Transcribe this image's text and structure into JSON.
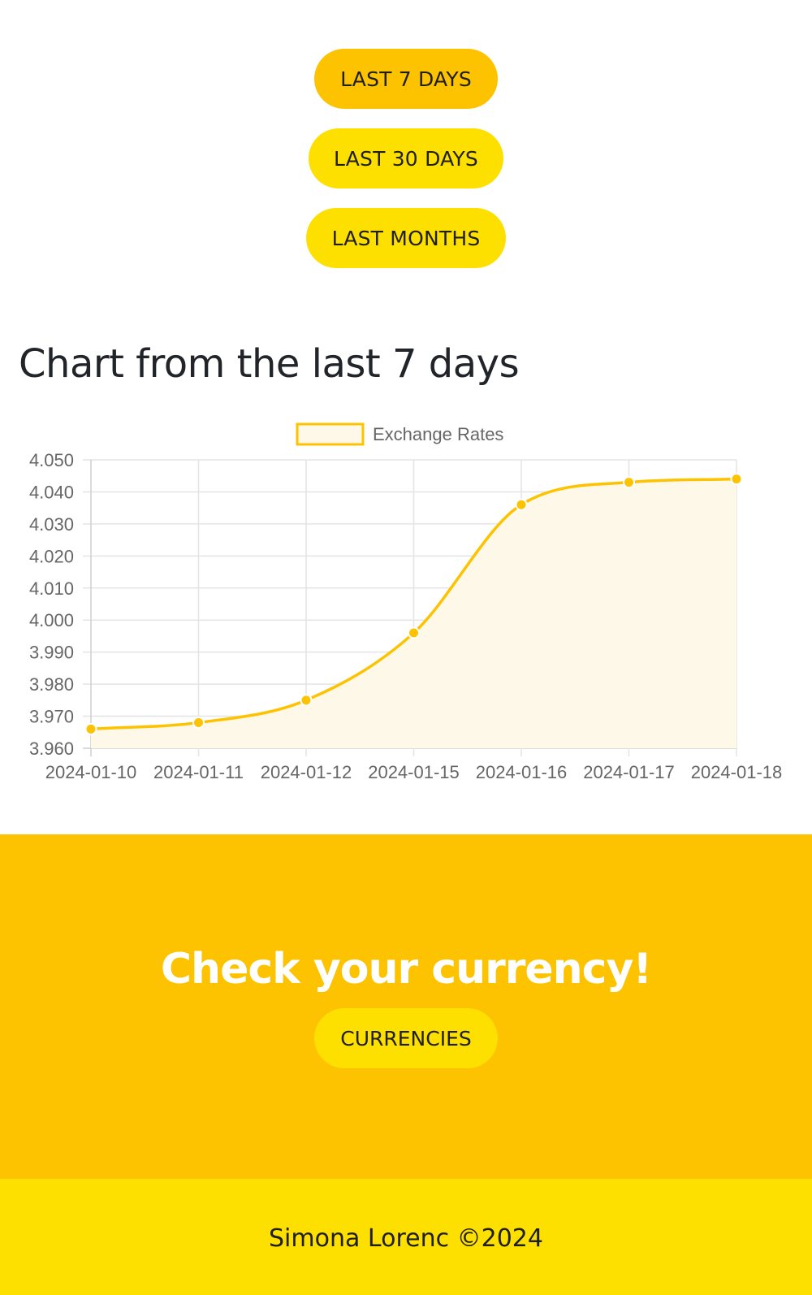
{
  "range_buttons": {
    "last_7_days": "LAST 7 DAYS",
    "last_30_days": "LAST 30 DAYS",
    "last_months": "LAST MONTHS"
  },
  "chart_section": {
    "title": "Chart from the last 7 days"
  },
  "chart_data": {
    "type": "line",
    "x": [
      "2024-01-10",
      "2024-01-11",
      "2024-01-12",
      "2024-01-15",
      "2024-01-16",
      "2024-01-17",
      "2024-01-18"
    ],
    "series": [
      {
        "name": "Exchange Rates",
        "values": [
          3.966,
          3.968,
          3.975,
          3.996,
          4.036,
          4.043,
          4.044
        ],
        "color": "#fdc300",
        "fill": "#fdf8e8"
      }
    ],
    "ylim": [
      3.96,
      4.05
    ],
    "yticks": [
      "4.050",
      "4.040",
      "4.030",
      "4.020",
      "4.010",
      "4.000",
      "3.990",
      "3.980",
      "3.970",
      "3.960"
    ],
    "ytick_values": [
      4.05,
      4.04,
      4.03,
      4.02,
      4.01,
      4.0,
      3.99,
      3.98,
      3.97,
      3.96
    ],
    "legend": "top-center",
    "grid": true,
    "title": "",
    "xlabel": "",
    "ylabel": ""
  },
  "cta": {
    "title": "Check your currency!",
    "button": "CURRENCIES"
  },
  "footer": {
    "text": "Simona Lorenc ©2024"
  },
  "colors": {
    "accent": "#fdc300",
    "accent_light": "#fddf00",
    "text_dark": "#212529"
  }
}
